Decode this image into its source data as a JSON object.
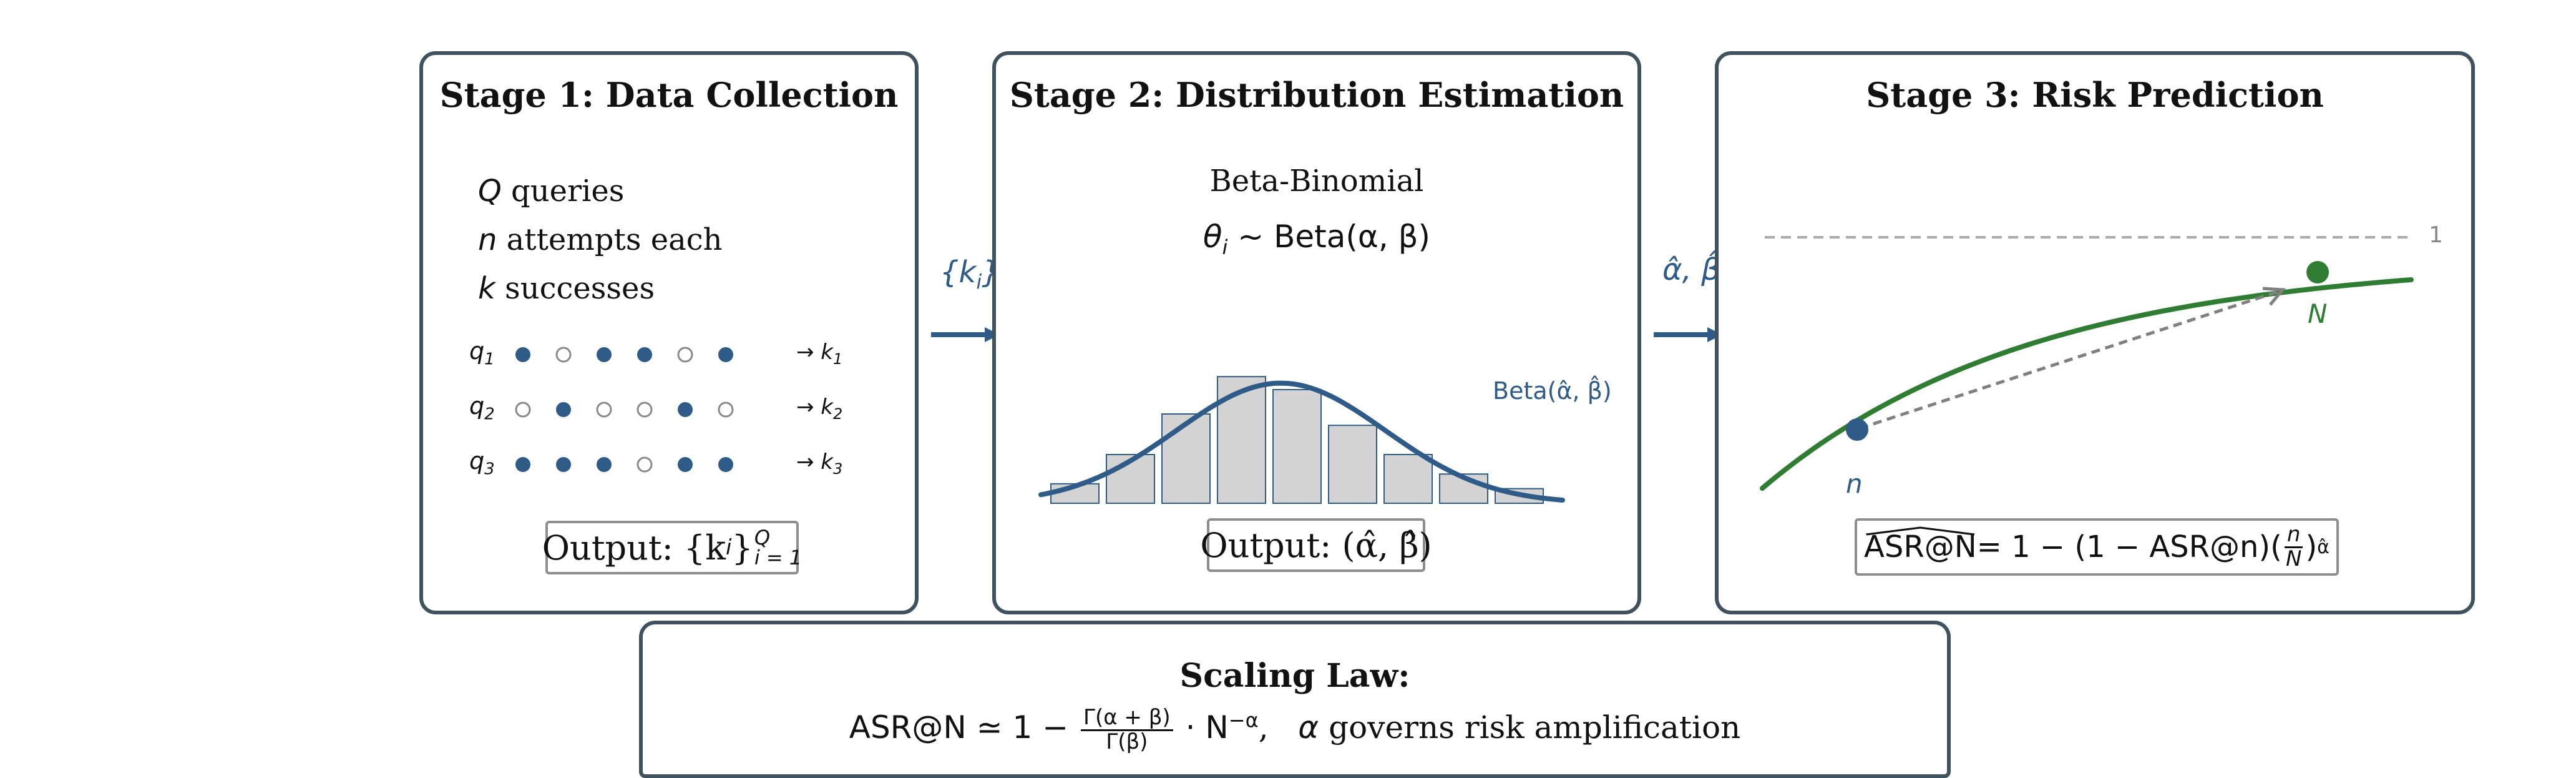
{
  "stage1": {
    "title": "Stage 1: Data Collection",
    "lines": [
      {
        "var": "Q",
        "text": " queries"
      },
      {
        "var": "n",
        "text": " attempts each"
      },
      {
        "var": "k",
        "text": " successes"
      }
    ],
    "rows": [
      {
        "label": "q",
        "sub": "1",
        "result": "→ k",
        "result_sub": "1",
        "dots": [
          1,
          0,
          1,
          1,
          0,
          1
        ]
      },
      {
        "label": "q",
        "sub": "2",
        "result": "→ k",
        "result_sub": "2",
        "dots": [
          0,
          1,
          0,
          0,
          1,
          0
        ]
      },
      {
        "label": "q",
        "sub": "3",
        "result": "→ k",
        "result_sub": "3",
        "dots": [
          1,
          1,
          1,
          0,
          1,
          1
        ]
      }
    ],
    "output_prefix": "Output: {k",
    "output_sub": "i",
    "output_close": "}",
    "output_sup": "Q",
    "output_sub2": "i = 1"
  },
  "arrow1_label": "{k",
  "arrow1_sub": "i",
  "arrow1_close": "}",
  "stage2": {
    "title": "Stage 2: Distribution Estimation",
    "subtitle": "Beta-Binomial",
    "formula": "θ",
    "formula_sub": "i",
    "formula_rest": " ∼ Beta(α, β)",
    "curve_label": "Beta(α̂, β̂)",
    "hist_values": [
      0.12,
      0.3,
      0.55,
      0.78,
      0.7,
      0.48,
      0.3,
      0.18,
      0.09
    ],
    "output": "Output: (α̂, β̂)"
  },
  "arrow2_label": "α̂, β̂",
  "stage3": {
    "title": "Stage 3: Risk Prediction",
    "asymptote_label": "1",
    "point_n_label": "n",
    "point_N_label": "N",
    "formula_lhs": "ASR@N",
    "formula_mid": " = 1 − (1 − ASR@n)(",
    "frac_num": "n",
    "frac_den": "N",
    "formula_close": ")",
    "formula_sup": "α̂"
  },
  "scaling": {
    "title": "Scaling Law:",
    "lhs": "ASR@N ≃ 1 − ",
    "frac_num": "Γ(α + β)",
    "frac_den": "Γ(β)",
    "rhs": " · N",
    "rhs_sup": "−α",
    "comma": ",",
    "tail_var": "α",
    "tail": " governs risk amplification"
  },
  "colors": {
    "panel_border": "#3f525e",
    "blue": "#2e5b87",
    "green": "#2e7d32",
    "gray": "#808080",
    "hist_fill": "#d3d3d3"
  }
}
